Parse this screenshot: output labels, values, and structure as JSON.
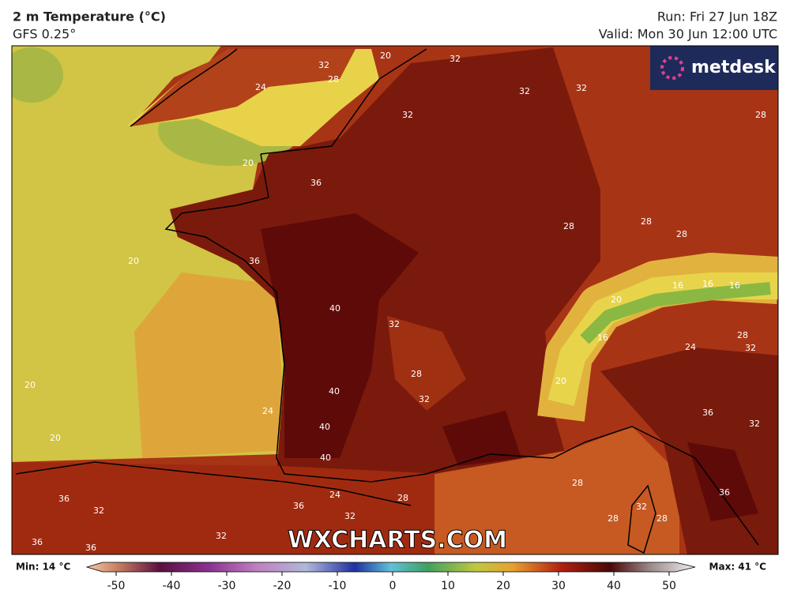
{
  "header": {
    "title": "2 m Temperature (°C)",
    "model": "GFS 0.25°",
    "run": "Run: Fri 27 Jun 18Z",
    "valid": "Valid: Mon 30 Jun 12:00 UTC"
  },
  "logo": "metdesk",
  "watermark": "WXCHARTS.COM",
  "map": {
    "contour_labels": [
      32,
      20,
      32,
      28,
      24,
      32,
      32,
      32,
      28,
      20,
      36,
      28,
      28,
      28,
      20,
      36,
      16,
      16,
      16,
      20,
      40,
      32,
      16,
      28,
      24,
      32,
      28,
      20,
      20,
      40,
      32,
      24,
      36,
      32,
      40,
      20,
      40,
      28,
      24,
      28,
      36,
      36,
      32,
      32,
      32,
      36,
      28,
      28,
      32,
      36,
      36
    ]
  },
  "colorbar": {
    "min_label": "Min: 14 °C",
    "max_label": "Max: 41 °C",
    "ticks": [
      -50,
      -40,
      -30,
      -20,
      -10,
      0,
      10,
      20,
      30,
      40,
      50
    ]
  }
}
